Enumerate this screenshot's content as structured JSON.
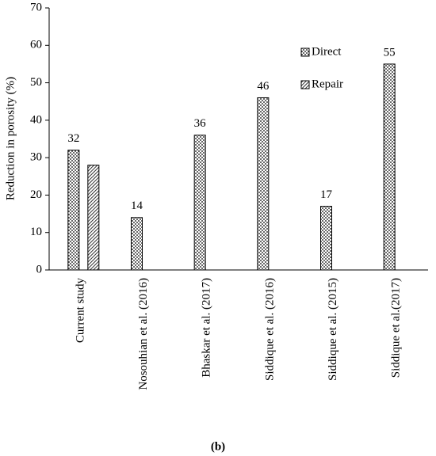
{
  "chart_data": {
    "type": "bar",
    "caption": "(b)",
    "y_label": "Reduction in porosity (%)",
    "categories": [
      "Current study",
      "Nosouhian et al. (2016)",
      "Bhaskar et al. (2017)",
      "Siddique et al. (2016)",
      "Siddique et al. (2015)",
      "Siddique et al.(2017)"
    ],
    "series": [
      {
        "name": "Direct",
        "color": "#000000",
        "pattern": "dots",
        "show_labels": true,
        "values": [
          32,
          14,
          36,
          46,
          17,
          55
        ]
      },
      {
        "name": "Repair",
        "color": "#000000",
        "pattern": "hatch",
        "show_labels": false,
        "values": [
          28,
          null,
          null,
          null,
          null,
          null
        ]
      }
    ],
    "ylim": [
      0,
      70
    ],
    "yticks": [
      0,
      10,
      20,
      30,
      40,
      50,
      60,
      70
    ],
    "grid": false,
    "legend": "top-right"
  }
}
